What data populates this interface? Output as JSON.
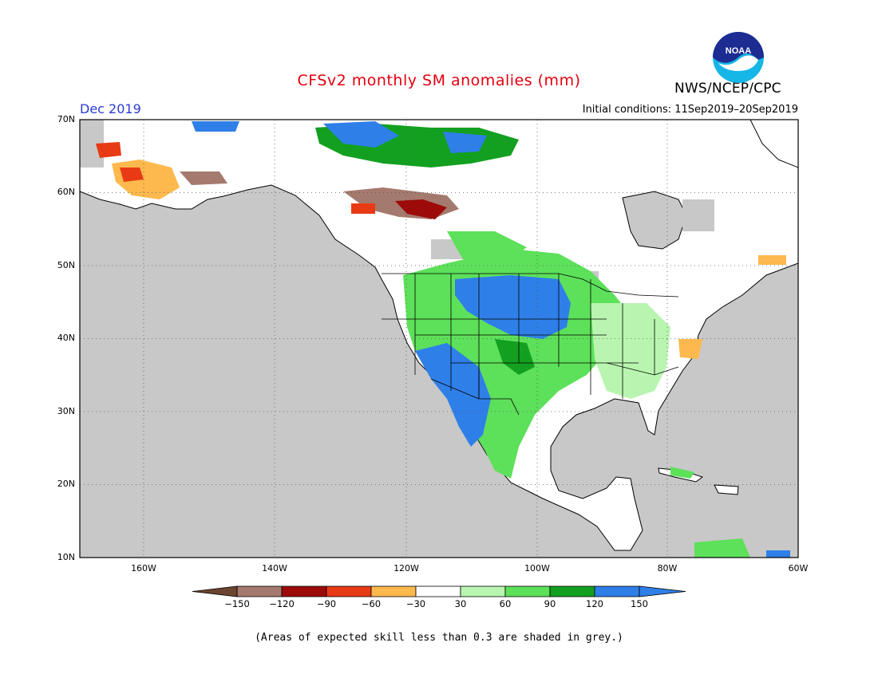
{
  "header": {
    "title": "CFSv2 monthly SM anomalies (mm)",
    "valid_month": "Dec 2019",
    "initial_conditions": "Initial conditions: 11Sep2019–20Sep2019",
    "organization": "NWS/NCEP/CPC",
    "logo_text": "NOAA"
  },
  "map": {
    "lon_range": [
      -172,
      -60
    ],
    "lat_range": [
      10,
      70
    ],
    "y_labels": [
      "70N",
      "60N",
      "50N",
      "40N",
      "30N",
      "20N",
      "10N"
    ],
    "x_labels": [
      "160W",
      "140W",
      "120W",
      "100W",
      "80W",
      "60W"
    ],
    "grid": "dotted 10-degree lines",
    "skill_mask_color": "#c8c8c8",
    "land_color": "#ffffff",
    "predominant_anomaly_regions": [
      {
        "region": "US Great Plains / Dakotas",
        "range": "120 to 150"
      },
      {
        "region": "US Southwest / northern Mexico",
        "range": "90 to 150"
      },
      {
        "region": "Western Canada",
        "range": "-150 to -60"
      },
      {
        "region": "Alaska",
        "range": "-120 to -30"
      }
    ]
  },
  "colorbar": {
    "labels": [
      "−150",
      "−120",
      "−90",
      "−60",
      "−30",
      "30",
      "60",
      "90",
      "120",
      "150"
    ],
    "colors": [
      "#6b4530",
      "#a57a6e",
      "#9c0a0a",
      "#e83a14",
      "#fdb94d",
      "#ffffff",
      "#b9f5b0",
      "#5de05a",
      "#13a020",
      "#2f7fe8",
      "#2f7fe8"
    ],
    "low_arrow_color": "#6b4530",
    "high_arrow_color": "#2f7fe8"
  },
  "footnote": "(Areas of expected skill less than 0.3 are shaded in grey.)"
}
